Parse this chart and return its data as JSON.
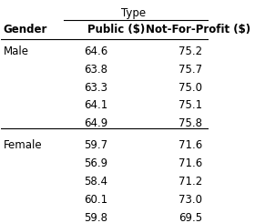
{
  "title_top": "Type",
  "col_header_gender": "Gender",
  "col_header_public": "Public ($)",
  "col_header_nfp": "Not-For-Profit ($)",
  "male_label": "Male",
  "female_label": "Female",
  "male_public": [
    64.6,
    63.8,
    63.3,
    64.1,
    64.9
  ],
  "male_nfp": [
    75.2,
    75.7,
    75.0,
    75.1,
    75.8
  ],
  "female_public": [
    59.7,
    56.9,
    58.4,
    60.1,
    59.8
  ],
  "female_nfp": [
    71.6,
    71.6,
    71.2,
    73.0,
    69.5
  ],
  "bg_color": "#ffffff",
  "text_color": "#000000",
  "font_size": 8.5,
  "header_font_size": 8.5
}
